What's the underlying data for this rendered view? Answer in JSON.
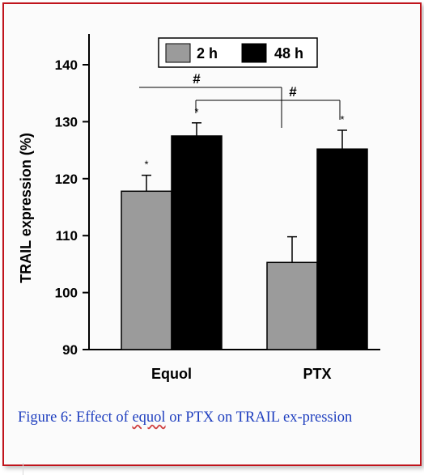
{
  "caption": {
    "text_part1": "Figure 6: Effect of ",
    "underlined_word": "equol",
    "text_part2": " or PTX on TRAIL ex-pression"
  },
  "colors": {
    "frame": "#c0141c",
    "caption_text": "#1f3fbf",
    "series_2h": "#9b9b9b",
    "series_48h": "#000000"
  },
  "chart_data": {
    "type": "bar",
    "title": "",
    "xlabel": "",
    "ylabel": "TRAIL expression (%)",
    "categories": [
      "Equol",
      "PTX"
    ],
    "y_ticks": [
      90,
      100,
      110,
      120,
      130,
      140
    ],
    "ylim": [
      90,
      145
    ],
    "grid": false,
    "legend_position": "top-center",
    "series": [
      {
        "name": "2 h",
        "color": "#9b9b9b",
        "values": [
          117.8,
          105.3
        ],
        "errors": [
          2.8,
          4.5
        ],
        "significance": [
          "*",
          ""
        ]
      },
      {
        "name": "48 h",
        "color": "#000000",
        "values": [
          127.5,
          125.2
        ],
        "errors": [
          2.3,
          3.3
        ],
        "significance": [
          "*",
          "*"
        ]
      }
    ],
    "annotations": [
      {
        "label": "#",
        "from": "Equol 2 h",
        "to": "PTX 2 h"
      },
      {
        "label": "#",
        "from": "Equol 48 h",
        "to": "PTX 48 h"
      }
    ]
  }
}
